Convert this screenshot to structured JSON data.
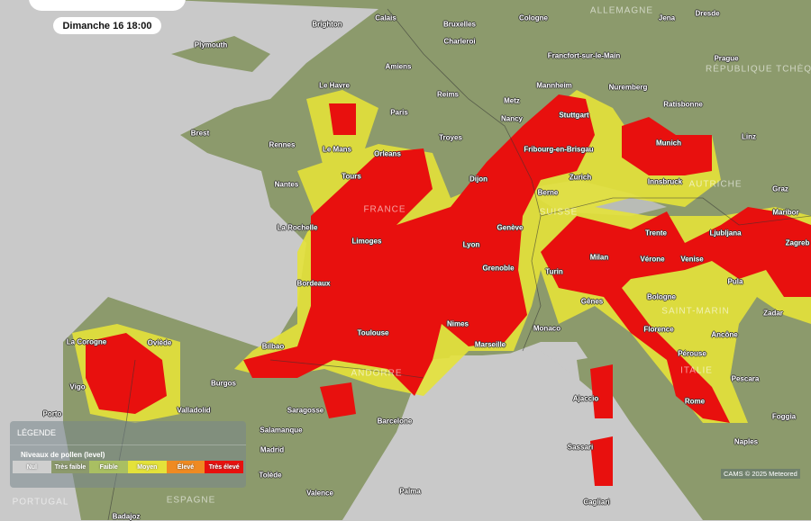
{
  "date_label": "Dimanche 16 18:00",
  "legend": {
    "title": "LÉGENDE",
    "subtitle": "Niveaux de pollen (level)",
    "levels": [
      {
        "label": "Nul",
        "color": "#cfcfcf"
      },
      {
        "label": "Très faible",
        "color": "#8c9a6c"
      },
      {
        "label": "Faible",
        "color": "#a9bf62"
      },
      {
        "label": "Moyen",
        "color": "#e4e23a"
      },
      {
        "label": "Élevé",
        "color": "#ef8a22"
      },
      {
        "label": "Très élevé",
        "color": "#e8100e"
      }
    ]
  },
  "attribution": "CAMS © 2025 Meteored",
  "colors": {
    "sea": "#c9c9c9",
    "land": "#8c9a6c",
    "high": "#e8100e"
  },
  "countries": [
    "ALLEMAGNE",
    "RÉPUBLIQUE TCHÈQUE",
    "FRANCE",
    "SUISSE",
    "AUTRICHE",
    "ITALIE",
    "ANDORRE",
    "SAINT-MARIN",
    "ESPAGNE",
    "PORTUGAL"
  ],
  "cities": [
    "Plymouth",
    "Brighton",
    "Calais",
    "Bruxelles",
    "Charleroi",
    "Cologne",
    "Jena",
    "Dresde",
    "Le Havre",
    "Amiens",
    "Reims",
    "Metz",
    "Francfort-sur-le-Main",
    "Mannheim",
    "Nuremberg",
    "Prague",
    "Paris",
    "Brest",
    "Rennes",
    "Le Mans",
    "Orleans",
    "Troyes",
    "Nancy",
    "Stuttgart",
    "Ratisbonne",
    "Munich",
    "Linz",
    "Tours",
    "Nantes",
    "Dijon",
    "Fribourg-en-Brisgau",
    "Zurich",
    "Berne",
    "Innsbruck",
    "Graz",
    "La Rochelle",
    "Limoges",
    "Genève",
    "Lyon",
    "Trente",
    "Ljubljana",
    "Maribor",
    "Zagreb",
    "Grenoble",
    "Turin",
    "Milan",
    "Vérone",
    "Venise",
    "Bordeaux",
    "Gênes",
    "Bologne",
    "Pula",
    "Zadar",
    "Monaco",
    "Nimes",
    "Toulouse",
    "Marseille",
    "Florence",
    "Ancône",
    "Pérouse",
    "Pescara",
    "Bilbao",
    "La Corogne",
    "Oviède",
    "Vigo",
    "Burgos",
    "Ajaccio",
    "Rome",
    "Foggia",
    "Valladolid",
    "Saragosse",
    "Barcelone",
    "Porto",
    "Salamanque",
    "Madrid",
    "Tolède",
    "Sassari",
    "Naples",
    "Valence",
    "Palma",
    "Cagliari",
    "Badajoz"
  ]
}
